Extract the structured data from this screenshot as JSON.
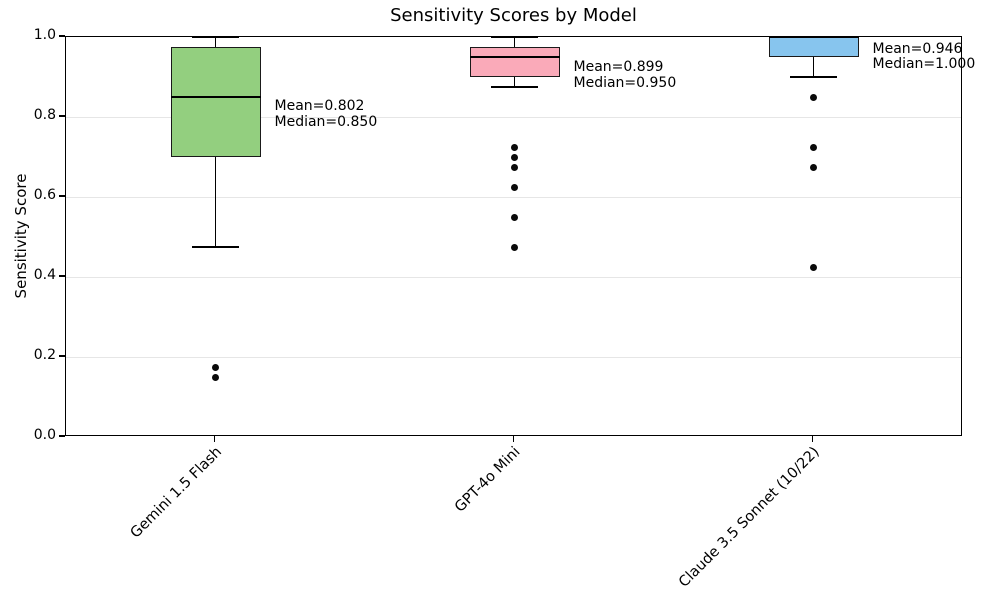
{
  "chart_data": {
    "type": "box",
    "title": "Sensitivity Scores by Model",
    "ylabel": "Sensitivity Score",
    "xlabel": "",
    "ylim": [
      0.0,
      1.0
    ],
    "yticks": [
      0.0,
      0.2,
      0.4,
      0.6,
      0.8,
      1.0
    ],
    "grid": {
      "horizontal": true,
      "color": "#e6e6e6"
    },
    "box_edge_color": "#1a1a1a",
    "median_color": "#000000",
    "outlier_color": "#0a0a0a",
    "categories": [
      "Gemini 1.5 Flash",
      "GPT-4o Mini",
      "Claude 3.5 Sonnet (10/22)"
    ],
    "series": [
      {
        "model": "Gemini 1.5 Flash",
        "color": "#93cf7f",
        "whisker_low": 0.475,
        "q1": 0.7,
        "median": 0.85,
        "q3": 0.975,
        "whisker_high": 1.0,
        "mean": 0.802,
        "outliers": [
          0.175,
          0.15
        ],
        "annotation_lines": [
          "Mean=0.802",
          "Median=0.850"
        ]
      },
      {
        "model": "GPT-4o Mini",
        "color": "#faaab9",
        "whisker_low": 0.875,
        "q1": 0.9,
        "median": 0.95,
        "q3": 0.975,
        "whisker_high": 1.0,
        "mean": 0.899,
        "outliers": [
          0.725,
          0.7,
          0.675,
          0.625,
          0.55,
          0.475
        ],
        "annotation_lines": [
          "Mean=0.899",
          "Median=0.950"
        ]
      },
      {
        "model": "Claude 3.5 Sonnet (10/22)",
        "color": "#87c5ee",
        "whisker_low": 0.9,
        "q1": 0.95,
        "median": 1.0,
        "q3": 1.0,
        "whisker_high": 1.0,
        "mean": 0.946,
        "outliers": [
          0.85,
          0.725,
          0.675,
          0.425
        ],
        "annotation_lines": [
          "Mean=0.946",
          "Median=1.000"
        ]
      }
    ]
  }
}
